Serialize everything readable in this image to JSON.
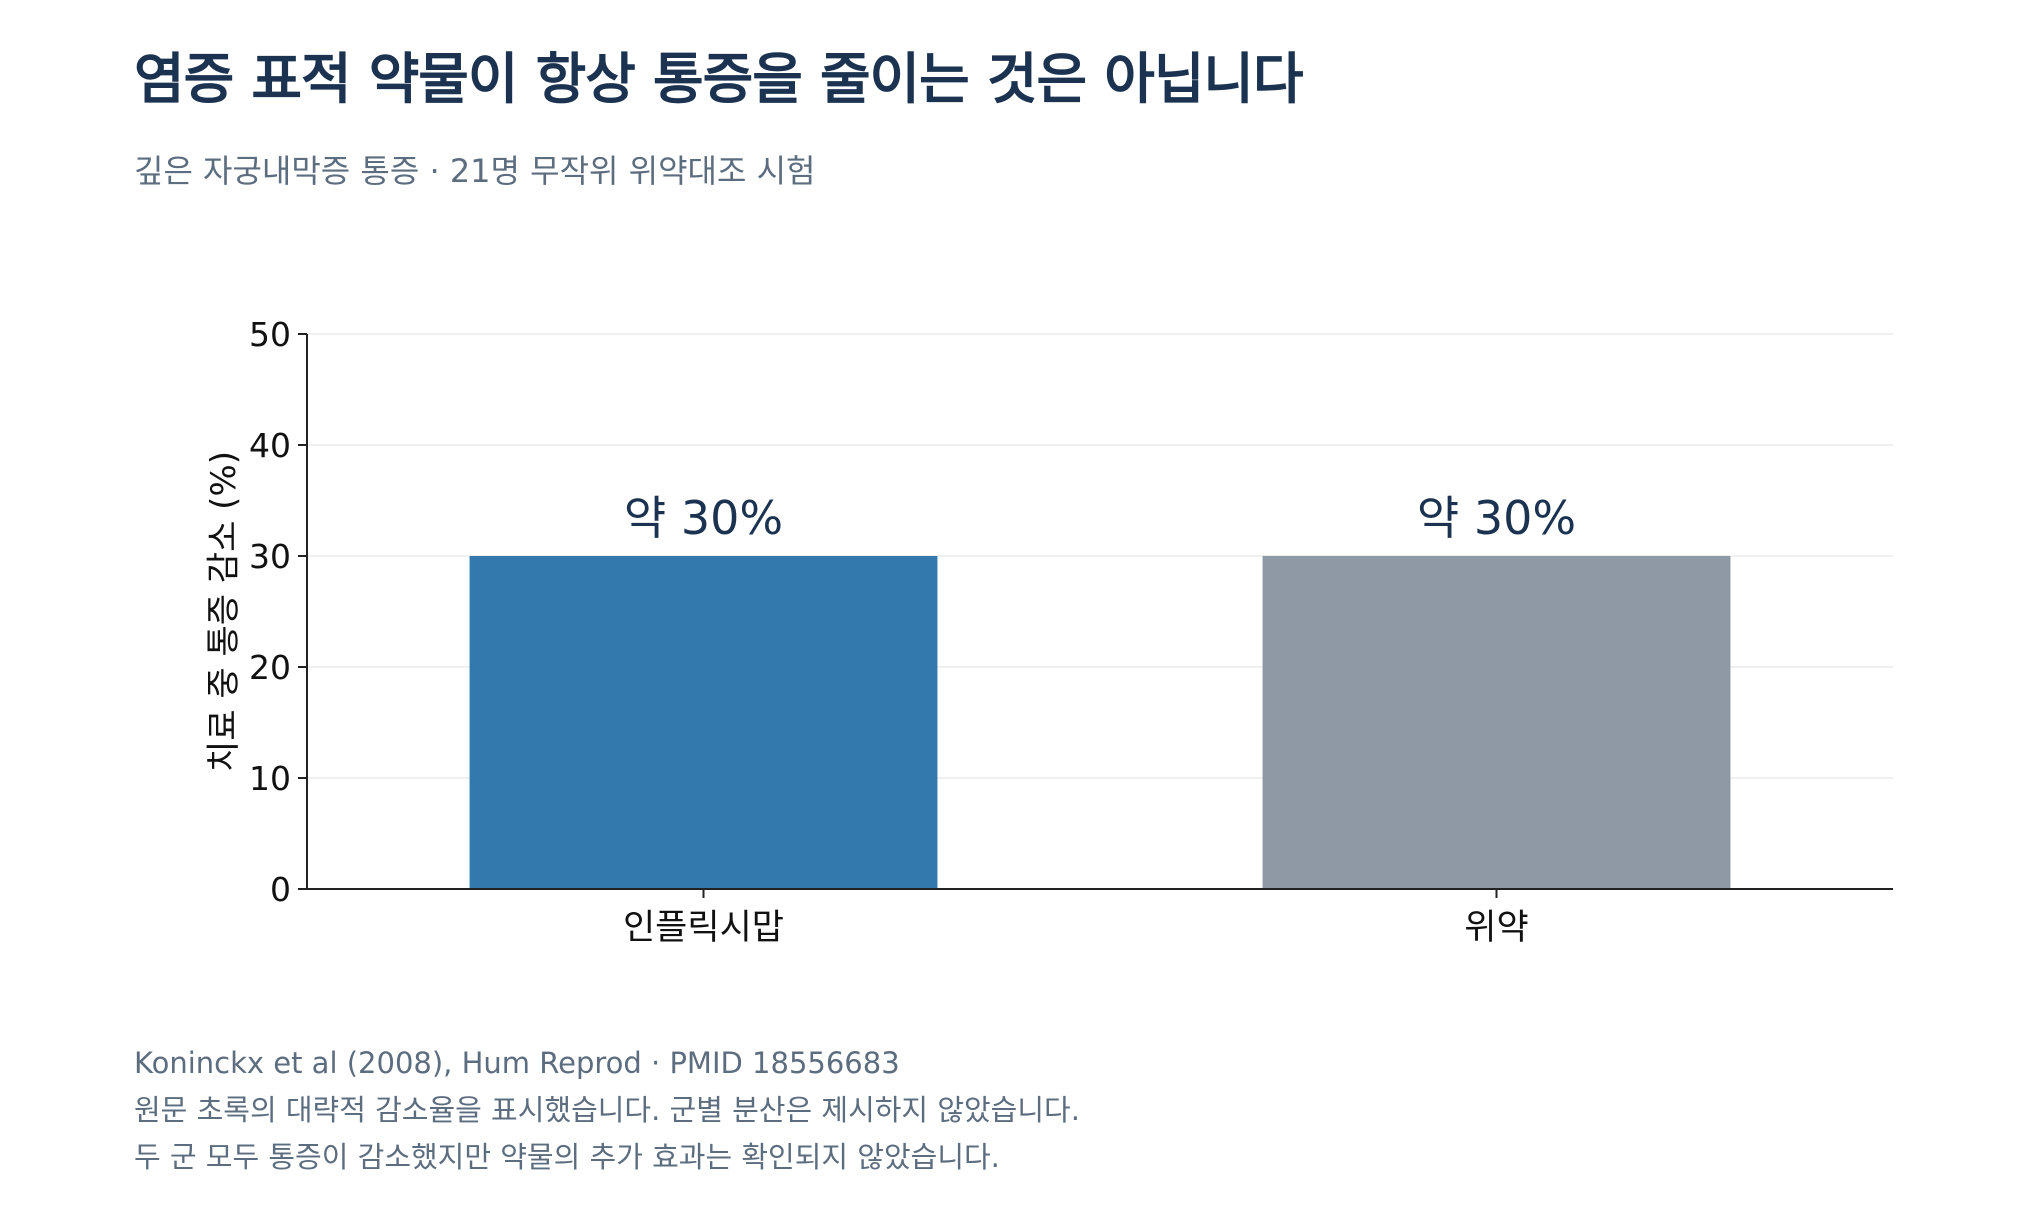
{
  "header": {
    "title": "염증 표적 약물이 항상 통증을 줄이는 것은 아닙니다",
    "subtitle": "깊은 자궁내막증 통증 · 21명 무작위 위약대조 시험"
  },
  "footer": {
    "lines": [
      "Koninckx et al (2008), Hum Reprod · PMID 18556683",
      "원문 초록의 대략적 감소율을 표시했습니다. 군별 분산은 제시하지 않았습니다.",
      "두 군 모두 통증이 감소했지만 약물의 추가 효과는 확인되지 않았습니다."
    ]
  },
  "chart_data": {
    "type": "bar",
    "categories": [
      "인플릭시맙",
      "위약"
    ],
    "values": [
      30,
      30
    ],
    "value_labels": [
      "약 30%",
      "약 30%"
    ],
    "colors": [
      "#3379ad",
      "#8f99a5"
    ],
    "ylabel": "치료 중 통증 감소 (%)",
    "xlabel": "",
    "ylim": [
      0,
      50
    ],
    "yticks": [
      0,
      10,
      20,
      30,
      40,
      50
    ],
    "grid": true,
    "legend": "none"
  }
}
